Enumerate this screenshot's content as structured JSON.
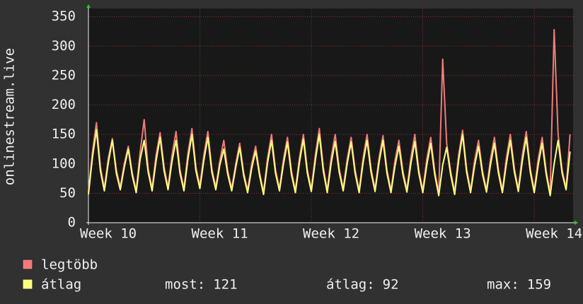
{
  "chart_data": {
    "type": "line",
    "y_label": "onlinestream.live",
    "xlim": [
      0,
      30.44
    ],
    "ylim": [
      0,
      364
    ],
    "xticks": [
      {
        "value": 0,
        "label": "Week 10"
      },
      {
        "value": 7,
        "label": "Week 11"
      },
      {
        "value": 14,
        "label": "Week 12"
      },
      {
        "value": 21,
        "label": "Week 13"
      },
      {
        "value": 28,
        "label": "Week 14"
      }
    ],
    "yticks": [
      0,
      50,
      100,
      150,
      200,
      250,
      300,
      350
    ],
    "grid": true,
    "x": [
      0,
      0.25,
      0.5,
      0.75,
      1,
      1.25,
      1.5,
      1.75,
      2,
      2.25,
      2.5,
      2.75,
      3,
      3.25,
      3.5,
      3.75,
      4,
      4.25,
      4.5,
      4.75,
      5,
      5.25,
      5.5,
      5.75,
      6,
      6.25,
      6.5,
      6.75,
      7,
      7.25,
      7.5,
      7.75,
      8,
      8.25,
      8.5,
      8.75,
      9,
      9.25,
      9.5,
      9.75,
      10,
      10.25,
      10.5,
      10.75,
      11,
      11.25,
      11.5,
      11.75,
      12,
      12.25,
      12.5,
      12.75,
      13,
      13.25,
      13.5,
      13.75,
      14,
      14.25,
      14.5,
      14.75,
      15,
      15.25,
      15.5,
      15.75,
      16,
      16.25,
      16.5,
      16.75,
      17,
      17.25,
      17.5,
      17.75,
      18,
      18.25,
      18.5,
      18.75,
      19,
      19.25,
      19.5,
      19.75,
      20,
      20.25,
      20.5,
      20.75,
      21,
      21.25,
      21.5,
      21.75,
      22,
      22.25,
      22.5,
      22.75,
      23,
      23.25,
      23.5,
      23.75,
      24,
      24.25,
      24.5,
      24.75,
      25,
      25.25,
      25.5,
      25.75,
      26,
      26.25,
      26.5,
      26.75,
      27,
      27.25,
      27.5,
      27.75,
      28,
      28.25,
      28.5,
      28.75,
      29,
      29.25,
      29.5,
      29.75,
      30,
      30.25
    ],
    "series": [
      {
        "name": "legtöbb",
        "color": "#f07b7b",
        "values": [
          52,
          120,
          170,
          95,
          58,
          110,
          143,
          90,
          60,
          100,
          130,
          85,
          55,
          120,
          175,
          92,
          58,
          115,
          153,
          95,
          60,
          115,
          155,
          90,
          58,
          118,
          160,
          95,
          62,
          115,
          155,
          92,
          60,
          105,
          140,
          88,
          58,
          100,
          135,
          85,
          55,
          100,
          130,
          85,
          52,
          110,
          150,
          90,
          58,
          108,
          145,
          88,
          55,
          110,
          150,
          90,
          57,
          115,
          160,
          95,
          55,
          112,
          150,
          92,
          58,
          108,
          145,
          90,
          55,
          110,
          150,
          92,
          57,
          110,
          148,
          90,
          55,
          105,
          140,
          88,
          56,
          110,
          150,
          90,
          55,
          108,
          145,
          88,
          50,
          278,
          135,
          88,
          52,
          115,
          157,
          92,
          55,
          105,
          140,
          88,
          56,
          108,
          145,
          90,
          55,
          110,
          150,
          92,
          57,
          115,
          155,
          92,
          55,
          108,
          145,
          88,
          50,
          328,
          150,
          90,
          58,
          150
        ]
      },
      {
        "name": "átlag",
        "color": "#ffff80",
        "values": [
          48,
          110,
          158,
          88,
          54,
          102,
          140,
          84,
          56,
          94,
          125,
          80,
          51,
          108,
          140,
          86,
          54,
          105,
          145,
          88,
          56,
          104,
          140,
          84,
          54,
          108,
          150,
          88,
          58,
          106,
          145,
          86,
          56,
          98,
          125,
          82,
          54,
          94,
          128,
          80,
          51,
          92,
          122,
          80,
          48,
          102,
          140,
          84,
          54,
          100,
          137,
          82,
          51,
          102,
          142,
          84,
          53,
          106,
          150,
          88,
          51,
          102,
          138,
          86,
          54,
          100,
          137,
          84,
          51,
          102,
          140,
          86,
          53,
          102,
          140,
          84,
          51,
          96,
          130,
          82,
          52,
          100,
          138,
          84,
          51,
          98,
          135,
          82,
          46,
          98,
          128,
          82,
          48,
          106,
          150,
          86,
          51,
          96,
          130,
          82,
          52,
          98,
          135,
          84,
          51,
          100,
          140,
          86,
          53,
          104,
          145,
          86,
          51,
          98,
          135,
          82,
          46,
          100,
          140,
          84,
          56,
          121
        ]
      }
    ],
    "stats": [
      {
        "label": "most:",
        "value": 121
      },
      {
        "label": "átlag:",
        "value": 92
      },
      {
        "label": "max:",
        "value": 159
      }
    ]
  }
}
